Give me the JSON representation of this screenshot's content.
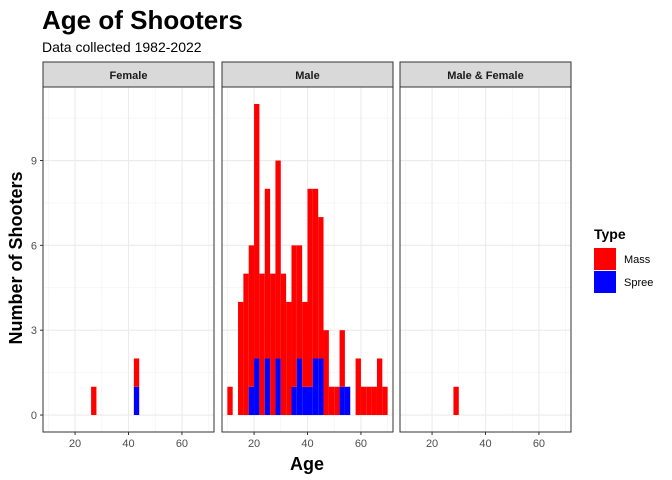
{
  "chart_data": {
    "type": "bar",
    "title": "Age of Shooters",
    "subtitle": "Data collected 1982-2022",
    "xlabel": "Age",
    "ylabel": "Number of Shooters",
    "xlim": [
      8,
      72
    ],
    "ylim": [
      -0.6,
      11.6
    ],
    "xticks": [
      20,
      40,
      60
    ],
    "yticks": [
      0,
      3,
      6,
      9
    ],
    "grid": true,
    "bin_width": 2,
    "legend": {
      "title": "Type",
      "placement": "right",
      "entries": [
        {
          "label": "Mass",
          "color": "#ff0000"
        },
        {
          "label": "Spree",
          "color": "#0000ff"
        }
      ]
    },
    "panels": [
      {
        "label": "Female",
        "bars": [
          {
            "x": 27,
            "mass": 1,
            "spree": 0
          },
          {
            "x": 43,
            "mass": 1,
            "spree": 1
          }
        ]
      },
      {
        "label": "Male",
        "bars": [
          {
            "x": 11,
            "mass": 1,
            "spree": 0
          },
          {
            "x": 15,
            "mass": 4,
            "spree": 0
          },
          {
            "x": 17,
            "mass": 5,
            "spree": 0
          },
          {
            "x": 19,
            "mass": 5,
            "spree": 1
          },
          {
            "x": 21,
            "mass": 9,
            "spree": 2
          },
          {
            "x": 23,
            "mass": 5,
            "spree": 0
          },
          {
            "x": 25,
            "mass": 6,
            "spree": 2
          },
          {
            "x": 27,
            "mass": 5,
            "spree": 0
          },
          {
            "x": 29,
            "mass": 7,
            "spree": 2
          },
          {
            "x": 31,
            "mass": 5,
            "spree": 0
          },
          {
            "x": 33,
            "mass": 4,
            "spree": 0
          },
          {
            "x": 35,
            "mass": 5,
            "spree": 1
          },
          {
            "x": 37,
            "mass": 4,
            "spree": 2
          },
          {
            "x": 39,
            "mass": 3,
            "spree": 1
          },
          {
            "x": 41,
            "mass": 7,
            "spree": 1
          },
          {
            "x": 43,
            "mass": 6,
            "spree": 2
          },
          {
            "x": 45,
            "mass": 5,
            "spree": 2
          },
          {
            "x": 47,
            "mass": 3,
            "spree": 0
          },
          {
            "x": 49,
            "mass": 1,
            "spree": 0
          },
          {
            "x": 51,
            "mass": 1,
            "spree": 0
          },
          {
            "x": 53,
            "mass": 2,
            "spree": 1
          },
          {
            "x": 55,
            "mass": 0,
            "spree": 1
          },
          {
            "x": 57,
            "mass": 0,
            "spree": 0
          },
          {
            "x": 59,
            "mass": 2,
            "spree": 0
          },
          {
            "x": 61,
            "mass": 1,
            "spree": 0
          },
          {
            "x": 63,
            "mass": 1,
            "spree": 0
          },
          {
            "x": 65,
            "mass": 1,
            "spree": 0
          },
          {
            "x": 67,
            "mass": 2,
            "spree": 0
          },
          {
            "x": 69,
            "mass": 1,
            "spree": 0
          }
        ]
      },
      {
        "label": "Male & Female",
        "bars": [
          {
            "x": 29,
            "mass": 1,
            "spree": 0
          }
        ]
      }
    ]
  }
}
